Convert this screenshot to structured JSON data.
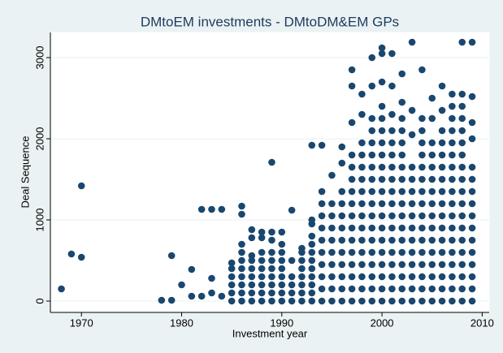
{
  "chart_data": {
    "type": "scatter",
    "title": "DMtoEM investments - DMtoDM&EM GPs",
    "x_label": "Investment year",
    "y_label": "Deal Sequence",
    "color": "#1a476f",
    "grid": true,
    "xlim": [
      1966.9,
      2010.7
    ],
    "ylim": [
      -140,
      3310
    ],
    "xticks": [
      1970,
      1980,
      1990,
      2000,
      2010
    ],
    "yticks": [
      0,
      1000,
      2000,
      3000
    ],
    "x": [
      1968,
      1969,
      1970,
      1970,
      1978,
      1979,
      1979,
      1980,
      1981,
      1981,
      1982,
      1982,
      1983,
      1983,
      1983,
      1984,
      1984,
      1985,
      1985,
      1985,
      1985,
      1985,
      1985,
      1986,
      1986,
      1986,
      1986,
      1986,
      1986,
      1986,
      1986,
      1986,
      1986,
      1987,
      1987,
      1987,
      1987,
      1987,
      1987,
      1987,
      1987,
      1987,
      1988,
      1988,
      1988,
      1988,
      1988,
      1988,
      1988,
      1988,
      1988,
      1989,
      1989,
      1989,
      1989,
      1989,
      1989,
      1989,
      1989,
      1989,
      1989,
      1990,
      1990,
      1990,
      1990,
      1990,
      1990,
      1990,
      1990,
      1990,
      1991,
      1991,
      1991,
      1991,
      1991,
      1991,
      1992,
      1992,
      1992,
      1992,
      1992,
      1992,
      1992,
      1992,
      1993,
      1993,
      1993,
      1993,
      1993,
      1993,
      1993,
      1993,
      1993,
      1993,
      1993,
      1993,
      1994,
      1994,
      1994,
      1994,
      1994,
      1994,
      1994,
      1994,
      1994,
      1994,
      1994,
      1995,
      1995,
      1995,
      1995,
      1995,
      1995,
      1995,
      1995,
      1995,
      1995,
      1996,
      1996,
      1996,
      1996,
      1996,
      1996,
      1996,
      1996,
      1996,
      1996,
      1996,
      1996,
      1997,
      1997,
      1997,
      1997,
      1997,
      1997,
      1997,
      1997,
      1997,
      1997,
      1997,
      1997,
      1997,
      1997,
      1997,
      1997,
      1998,
      1998,
      1998,
      1998,
      1998,
      1998,
      1998,
      1998,
      1998,
      1998,
      1998,
      1998,
      1998,
      1998,
      1998,
      1998,
      1999,
      1999,
      1999,
      1999,
      1999,
      1999,
      1999,
      1999,
      1999,
      1999,
      1999,
      1999,
      1999,
      1999,
      1999,
      1999,
      1999,
      1999,
      2000,
      2000,
      2000,
      2000,
      2000,
      2000,
      2000,
      2000,
      2000,
      2000,
      2000,
      2000,
      2000,
      2000,
      2000,
      2000,
      2000,
      2000,
      2000,
      2000,
      2001,
      2001,
      2001,
      2001,
      2001,
      2001,
      2001,
      2001,
      2001,
      2001,
      2001,
      2001,
      2001,
      2001,
      2001,
      2001,
      2001,
      2001,
      2002,
      2002,
      2002,
      2002,
      2002,
      2002,
      2002,
      2002,
      2002,
      2002,
      2002,
      2002,
      2002,
      2002,
      2002,
      2002,
      2002,
      2002,
      2003,
      2003,
      2003,
      2003,
      2003,
      2003,
      2003,
      2003,
      2003,
      2003,
      2003,
      2003,
      2003,
      2003,
      2003,
      2004,
      2004,
      2004,
      2004,
      2004,
      2004,
      2004,
      2004,
      2004,
      2004,
      2004,
      2004,
      2004,
      2004,
      2004,
      2004,
      2004,
      2005,
      2005,
      2005,
      2005,
      2005,
      2005,
      2005,
      2005,
      2005,
      2005,
      2005,
      2005,
      2005,
      2005,
      2005,
      2005,
      2006,
      2006,
      2006,
      2006,
      2006,
      2006,
      2006,
      2006,
      2006,
      2006,
      2006,
      2006,
      2006,
      2006,
      2006,
      2006,
      2006,
      2007,
      2007,
      2007,
      2007,
      2007,
      2007,
      2007,
      2007,
      2007,
      2007,
      2007,
      2007,
      2007,
      2007,
      2007,
      2007,
      2007,
      2007,
      2008,
      2008,
      2008,
      2008,
      2008,
      2008,
      2008,
      2008,
      2008,
      2008,
      2008,
      2008,
      2008,
      2008,
      2008,
      2008,
      2008,
      2008,
      2008,
      2009,
      2009,
      2009,
      2009,
      2009,
      2009,
      2009,
      2009,
      2009,
      2009,
      2009,
      2009,
      2009,
      2009,
      2009,
      2009
    ],
    "y": [
      150,
      580,
      540,
      1420,
      10,
      10,
      560,
      200,
      60,
      390,
      1130,
      60,
      1130,
      280,
      100,
      1130,
      60,
      0,
      100,
      200,
      300,
      400,
      470,
      0,
      100,
      200,
      300,
      400,
      500,
      600,
      700,
      1070,
      1170,
      0,
      100,
      200,
      300,
      400,
      500,
      560,
      780,
      880,
      0,
      100,
      200,
      300,
      400,
      500,
      600,
      780,
      850,
      0,
      100,
      200,
      300,
      400,
      500,
      600,
      750,
      850,
      1710,
      0,
      100,
      200,
      300,
      400,
      500,
      600,
      700,
      850,
      0,
      100,
      200,
      300,
      500,
      1120,
      0,
      100,
      200,
      300,
      400,
      500,
      600,
      650,
      0,
      100,
      200,
      300,
      400,
      500,
      600,
      700,
      800,
      950,
      1000,
      1920,
      0,
      150,
      300,
      450,
      600,
      750,
      900,
      1050,
      1200,
      1350,
      1920,
      0,
      150,
      300,
      450,
      600,
      750,
      900,
      1050,
      1200,
      1550,
      0,
      150,
      300,
      450,
      600,
      750,
      900,
      1050,
      1200,
      1350,
      1700,
      1900,
      0,
      150,
      300,
      450,
      600,
      750,
      900,
      1050,
      1200,
      1350,
      1500,
      1650,
      1800,
      2200,
      2650,
      2850,
      0,
      150,
      300,
      450,
      600,
      750,
      900,
      1050,
      1200,
      1350,
      1500,
      1650,
      1800,
      1950,
      2300,
      2550,
      0,
      150,
      300,
      450,
      600,
      750,
      900,
      1050,
      1200,
      1350,
      1500,
      1650,
      1800,
      1950,
      2100,
      2250,
      2650,
      3000,
      0,
      150,
      300,
      450,
      600,
      750,
      900,
      1050,
      1200,
      1350,
      1500,
      1650,
      1800,
      1950,
      2100,
      2250,
      2400,
      2700,
      3050,
      3120,
      0,
      150,
      300,
      450,
      600,
      750,
      900,
      1050,
      1200,
      1350,
      1500,
      1650,
      1800,
      1950,
      2100,
      2300,
      2650,
      3050,
      0,
      150,
      300,
      450,
      600,
      750,
      900,
      1050,
      1200,
      1350,
      1500,
      1650,
      1800,
      1950,
      2100,
      2250,
      2450,
      2800,
      0,
      150,
      300,
      450,
      600,
      750,
      900,
      1050,
      1200,
      1350,
      1500,
      1650,
      2050,
      2350,
      3190,
      0,
      150,
      300,
      450,
      600,
      750,
      900,
      1050,
      1200,
      1350,
      1500,
      1650,
      1800,
      1950,
      2100,
      2250,
      2850,
      0,
      150,
      300,
      450,
      600,
      750,
      900,
      1050,
      1200,
      1350,
      1500,
      1650,
      1800,
      1950,
      2250,
      2500,
      0,
      150,
      300,
      450,
      600,
      750,
      900,
      1050,
      1200,
      1350,
      1500,
      1650,
      1800,
      1950,
      2100,
      2350,
      2650,
      0,
      150,
      300,
      450,
      600,
      750,
      900,
      1050,
      1200,
      1350,
      1500,
      1650,
      1800,
      1950,
      2100,
      2250,
      2400,
      2550,
      0,
      150,
      300,
      450,
      600,
      750,
      900,
      1050,
      1200,
      1350,
      1500,
      1650,
      1800,
      1950,
      2100,
      2250,
      2400,
      2550,
      3190,
      0,
      150,
      300,
      450,
      600,
      750,
      900,
      1050,
      1200,
      1350,
      1500,
      1650,
      2000,
      2200,
      2520,
      3190
    ]
  }
}
